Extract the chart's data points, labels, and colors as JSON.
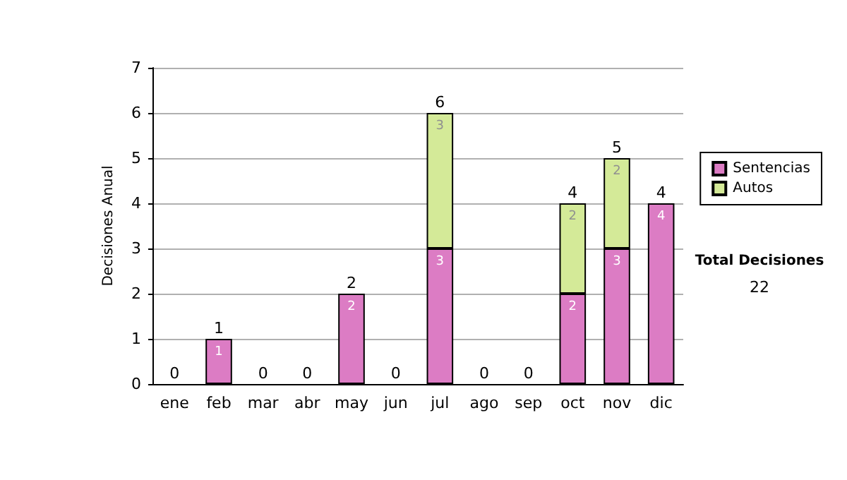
{
  "chart_data": {
    "type": "bar",
    "stacked": true,
    "ylabel": "Decisiones Anual",
    "categories": [
      "ene",
      "feb",
      "mar",
      "abr",
      "may",
      "jun",
      "jul",
      "ago",
      "sep",
      "oct",
      "nov",
      "dic"
    ],
    "series": [
      {
        "name": "Sentencias",
        "color": "#dc7cc4",
        "values": [
          0,
          1,
          0,
          0,
          2,
          0,
          3,
          0,
          0,
          2,
          3,
          4
        ],
        "value_labels": [
          null,
          "1",
          null,
          null,
          "2",
          null,
          "3",
          null,
          null,
          "2",
          "3",
          "4"
        ]
      },
      {
        "name": "Autos",
        "color": "#d4ea98",
        "values": [
          0,
          0,
          0,
          0,
          0,
          0,
          3,
          0,
          0,
          2,
          2,
          0
        ],
        "value_labels": [
          null,
          null,
          null,
          null,
          null,
          null,
          "3",
          null,
          null,
          "2",
          "2",
          null
        ]
      }
    ],
    "totals": [
      "0",
      "1",
      "0",
      "0",
      "2",
      "0",
      "6",
      "0",
      "0",
      "4",
      "5",
      "4"
    ],
    "ylim": [
      0,
      7
    ],
    "yticks": [
      0,
      1,
      2,
      3,
      4,
      5,
      6,
      7
    ],
    "grid": "y",
    "legend": "right",
    "annotations": [
      "Total Decisiones",
      "22"
    ]
  }
}
